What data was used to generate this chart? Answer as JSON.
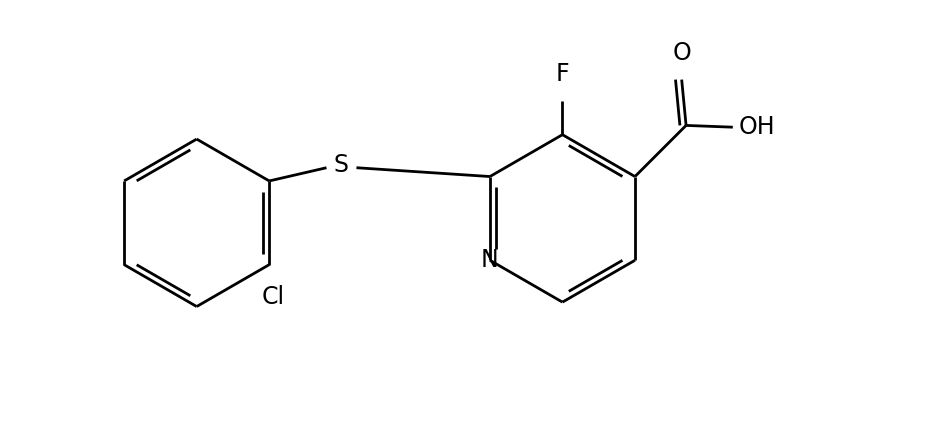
{
  "background_color": "#ffffff",
  "line_color": "#000000",
  "line_width": 2.0,
  "font_size": 17,
  "figsize": [
    9.31,
    4.28
  ],
  "dpi": 100,
  "xlim": [
    0.0,
    10.5
  ],
  "ylim": [
    0.3,
    5.0
  ]
}
